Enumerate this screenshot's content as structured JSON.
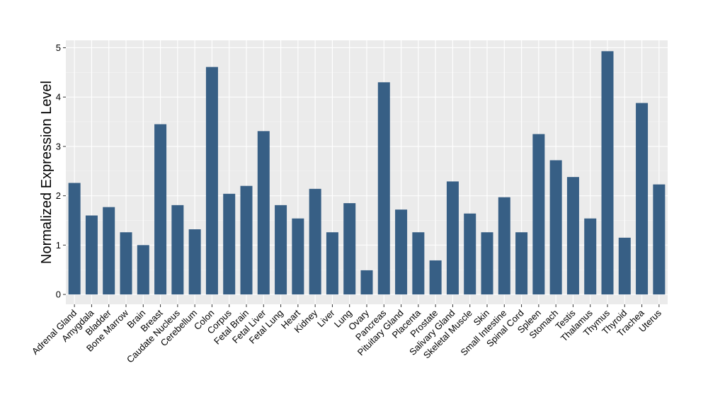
{
  "chart_data": {
    "type": "bar",
    "title": "",
    "xlabel": "",
    "ylabel": "Normalized Expression Level",
    "ylim": [
      -0.2,
      5.15
    ],
    "yticks": [
      0,
      1,
      2,
      3,
      4,
      5
    ],
    "grid": true,
    "legend": "none",
    "categories": [
      "Adrenal Gland",
      "Amygdala",
      "Bladder",
      "Bone Marrow",
      "Brain",
      "Breast",
      "Caudate Nucleus",
      "Cerebellum",
      "Colon",
      "Corpus",
      "Fetal Brain",
      "Fetal Liver",
      "Fetal Lung",
      "Heart",
      "Kidney",
      "Liver",
      "Lung",
      "Ovary",
      "Pancreas",
      "Pituitary Gland",
      "Placenta",
      "Prostate",
      "Salivary Gland",
      "Skeletal Muscle",
      "Skin",
      "Small Intestine",
      "Spinal Cord",
      "Spleen",
      "Stomach",
      "Testis",
      "Thalamus",
      "Thymus",
      "Thyroid",
      "Trachea",
      "Uterus"
    ],
    "values": [
      2.26,
      1.6,
      1.77,
      1.26,
      1.0,
      3.45,
      1.81,
      1.32,
      4.61,
      2.04,
      2.2,
      3.31,
      1.81,
      1.54,
      2.14,
      1.26,
      1.85,
      0.49,
      4.3,
      1.72,
      1.26,
      0.69,
      2.29,
      1.64,
      1.26,
      1.97,
      1.26,
      3.25,
      2.72,
      2.38,
      1.54,
      4.93,
      1.15,
      3.88,
      2.23
    ]
  },
  "colors": {
    "bar": "#375f85",
    "panel_background": "#ebebeb",
    "grid_major": "#ffffff",
    "grid_minor": "#f5f5f5",
    "tick": "#333333"
  }
}
